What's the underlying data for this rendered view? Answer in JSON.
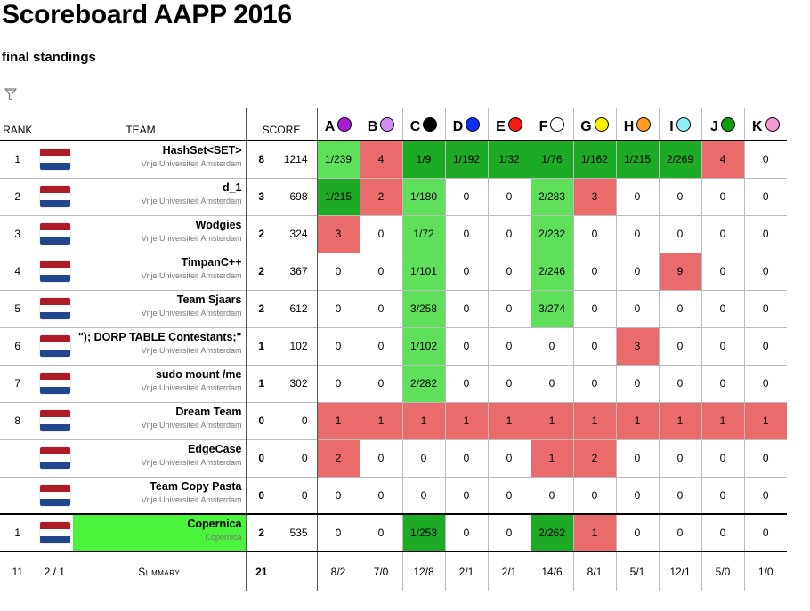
{
  "page": {
    "title": "Scoreboard AAPP 2016",
    "subtitle": "final standings",
    "filter_icon": "filter-icon"
  },
  "header": {
    "rank": "RANK",
    "team": "TEAM",
    "score": "SCORE"
  },
  "problems": [
    {
      "label": "A",
      "color": "#a61ed3"
    },
    {
      "label": "B",
      "color": "#d28bf0"
    },
    {
      "label": "C",
      "color": "#000000"
    },
    {
      "label": "D",
      "color": "#0b2ff5"
    },
    {
      "label": "E",
      "color": "#f51b13"
    },
    {
      "label": "F",
      "color": "#ffffff"
    },
    {
      "label": "G",
      "color": "#fff200"
    },
    {
      "label": "H",
      "color": "#ff9c1f"
    },
    {
      "label": "I",
      "color": "#8ff1f1"
    },
    {
      "label": "J",
      "color": "#139c13"
    },
    {
      "label": "K",
      "color": "#f599d4"
    }
  ],
  "colors": {
    "first": "#1daa24",
    "solved": "#5fe05b",
    "wrong": "#e96b6b",
    "highlight_team": "#4cf33d",
    "flag_red": "#ae1c28",
    "flag_white": "#ffffff",
    "flag_blue": "#21468b"
  },
  "teams": [
    {
      "rank": "1",
      "name": "HashSet<SET>",
      "affil": "Vrije Universiteit Amsterdam",
      "solved": "8",
      "points": "1214",
      "cells": [
        [
          "1/239",
          "ok"
        ],
        [
          "4",
          "bad"
        ],
        [
          "1/9",
          "first"
        ],
        [
          "1/192",
          "first"
        ],
        [
          "1/32",
          "first"
        ],
        [
          "1/76",
          "first"
        ],
        [
          "1/162",
          "first"
        ],
        [
          "1/215",
          "first"
        ],
        [
          "2/269",
          "first"
        ],
        [
          "4",
          "bad"
        ],
        [
          "0",
          "none"
        ]
      ]
    },
    {
      "rank": "2",
      "name": "d_1",
      "affil": "Vrije Universiteit Amsterdam",
      "solved": "3",
      "points": "698",
      "cells": [
        [
          "1/215",
          "first"
        ],
        [
          "2",
          "bad"
        ],
        [
          "1/180",
          "ok"
        ],
        [
          "0",
          "none"
        ],
        [
          "0",
          "none"
        ],
        [
          "2/283",
          "ok"
        ],
        [
          "3",
          "bad"
        ],
        [
          "0",
          "none"
        ],
        [
          "0",
          "none"
        ],
        [
          "0",
          "none"
        ],
        [
          "0",
          "none"
        ]
      ]
    },
    {
      "rank": "3",
      "name": "Wodgies",
      "affil": "Vrije Universiteit Amsterdam",
      "solved": "2",
      "points": "324",
      "cells": [
        [
          "3",
          "bad"
        ],
        [
          "0",
          "none"
        ],
        [
          "1/72",
          "ok"
        ],
        [
          "0",
          "none"
        ],
        [
          "0",
          "none"
        ],
        [
          "2/232",
          "ok"
        ],
        [
          "0",
          "none"
        ],
        [
          "0",
          "none"
        ],
        [
          "0",
          "none"
        ],
        [
          "0",
          "none"
        ],
        [
          "0",
          "none"
        ]
      ]
    },
    {
      "rank": "4",
      "name": "TimpanC++",
      "affil": "Vrije Universiteit Amsterdam",
      "solved": "2",
      "points": "367",
      "cells": [
        [
          "0",
          "none"
        ],
        [
          "0",
          "none"
        ],
        [
          "1/101",
          "ok"
        ],
        [
          "0",
          "none"
        ],
        [
          "0",
          "none"
        ],
        [
          "2/246",
          "ok"
        ],
        [
          "0",
          "none"
        ],
        [
          "0",
          "none"
        ],
        [
          "9",
          "bad"
        ],
        [
          "0",
          "none"
        ],
        [
          "0",
          "none"
        ]
      ]
    },
    {
      "rank": "5",
      "name": "Team Sjaars",
      "affil": "Vrije Universiteit Amsterdam",
      "solved": "2",
      "points": "612",
      "cells": [
        [
          "0",
          "none"
        ],
        [
          "0",
          "none"
        ],
        [
          "3/258",
          "ok"
        ],
        [
          "0",
          "none"
        ],
        [
          "0",
          "none"
        ],
        [
          "3/274",
          "ok"
        ],
        [
          "0",
          "none"
        ],
        [
          "0",
          "none"
        ],
        [
          "0",
          "none"
        ],
        [
          "0",
          "none"
        ],
        [
          "0",
          "none"
        ]
      ]
    },
    {
      "rank": "6",
      "name": "\"); DORP TABLE Contestants;\"",
      "affil": "Vrije Universiteit Amsterdam",
      "solved": "1",
      "points": "102",
      "cells": [
        [
          "0",
          "none"
        ],
        [
          "0",
          "none"
        ],
        [
          "1/102",
          "ok"
        ],
        [
          "0",
          "none"
        ],
        [
          "0",
          "none"
        ],
        [
          "0",
          "none"
        ],
        [
          "0",
          "none"
        ],
        [
          "3",
          "bad"
        ],
        [
          "0",
          "none"
        ],
        [
          "0",
          "none"
        ],
        [
          "0",
          "none"
        ]
      ]
    },
    {
      "rank": "7",
      "name": "sudo mount /me",
      "affil": "Vrije Universiteit Amsterdam",
      "solved": "1",
      "points": "302",
      "cells": [
        [
          "0",
          "none"
        ],
        [
          "0",
          "none"
        ],
        [
          "2/282",
          "ok"
        ],
        [
          "0",
          "none"
        ],
        [
          "0",
          "none"
        ],
        [
          "0",
          "none"
        ],
        [
          "0",
          "none"
        ],
        [
          "0",
          "none"
        ],
        [
          "0",
          "none"
        ],
        [
          "0",
          "none"
        ],
        [
          "0",
          "none"
        ]
      ]
    },
    {
      "rank": "8",
      "name": "Dream Team",
      "affil": "Vrije Universiteit Amsterdam",
      "solved": "0",
      "points": "0",
      "cells": [
        [
          "1",
          "bad"
        ],
        [
          "1",
          "bad"
        ],
        [
          "1",
          "bad"
        ],
        [
          "1",
          "bad"
        ],
        [
          "1",
          "bad"
        ],
        [
          "1",
          "bad"
        ],
        [
          "1",
          "bad"
        ],
        [
          "1",
          "bad"
        ],
        [
          "1",
          "bad"
        ],
        [
          "1",
          "bad"
        ],
        [
          "1",
          "bad"
        ]
      ]
    },
    {
      "rank": "",
      "name": "EdgeCase",
      "affil": "Vrije Universiteit Amsterdam",
      "solved": "0",
      "points": "0",
      "cells": [
        [
          "2",
          "bad"
        ],
        [
          "0",
          "none"
        ],
        [
          "0",
          "none"
        ],
        [
          "0",
          "none"
        ],
        [
          "0",
          "none"
        ],
        [
          "1",
          "bad"
        ],
        [
          "2",
          "bad"
        ],
        [
          "0",
          "none"
        ],
        [
          "0",
          "none"
        ],
        [
          "0",
          "none"
        ],
        [
          "0",
          "none"
        ]
      ]
    },
    {
      "rank": "",
      "name": "Team Copy Pasta",
      "affil": "Vrije Universiteit Amsterdam",
      "solved": "0",
      "points": "0",
      "cells": [
        [
          "0",
          "none"
        ],
        [
          "0",
          "none"
        ],
        [
          "0",
          "none"
        ],
        [
          "0",
          "none"
        ],
        [
          "0",
          "none"
        ],
        [
          "0",
          "none"
        ],
        [
          "0",
          "none"
        ],
        [
          "0",
          "none"
        ],
        [
          "0",
          "none"
        ],
        [
          "0",
          "none"
        ],
        [
          "0",
          "none"
        ]
      ]
    }
  ],
  "highlight_team": {
    "rank": "1",
    "name": "Copernica",
    "affil": "Copernica",
    "solved": "2",
    "points": "535",
    "cells": [
      [
        "0",
        "none"
      ],
      [
        "0",
        "none"
      ],
      [
        "1/253",
        "first"
      ],
      [
        "0",
        "none"
      ],
      [
        "0",
        "none"
      ],
      [
        "2/262",
        "first"
      ],
      [
        "1",
        "bad"
      ],
      [
        "0",
        "none"
      ],
      [
        "0",
        "none"
      ],
      [
        "0",
        "none"
      ],
      [
        "0",
        "none"
      ]
    ]
  },
  "summary": {
    "teams": "11",
    "affil": "2 / 1",
    "label": "Summary",
    "total_solved": "21",
    "problems": [
      "8/2",
      "7/0",
      "12/8",
      "2/1",
      "2/1",
      "14/6",
      "8/1",
      "5/1",
      "12/1",
      "5/0",
      "1/0"
    ]
  }
}
